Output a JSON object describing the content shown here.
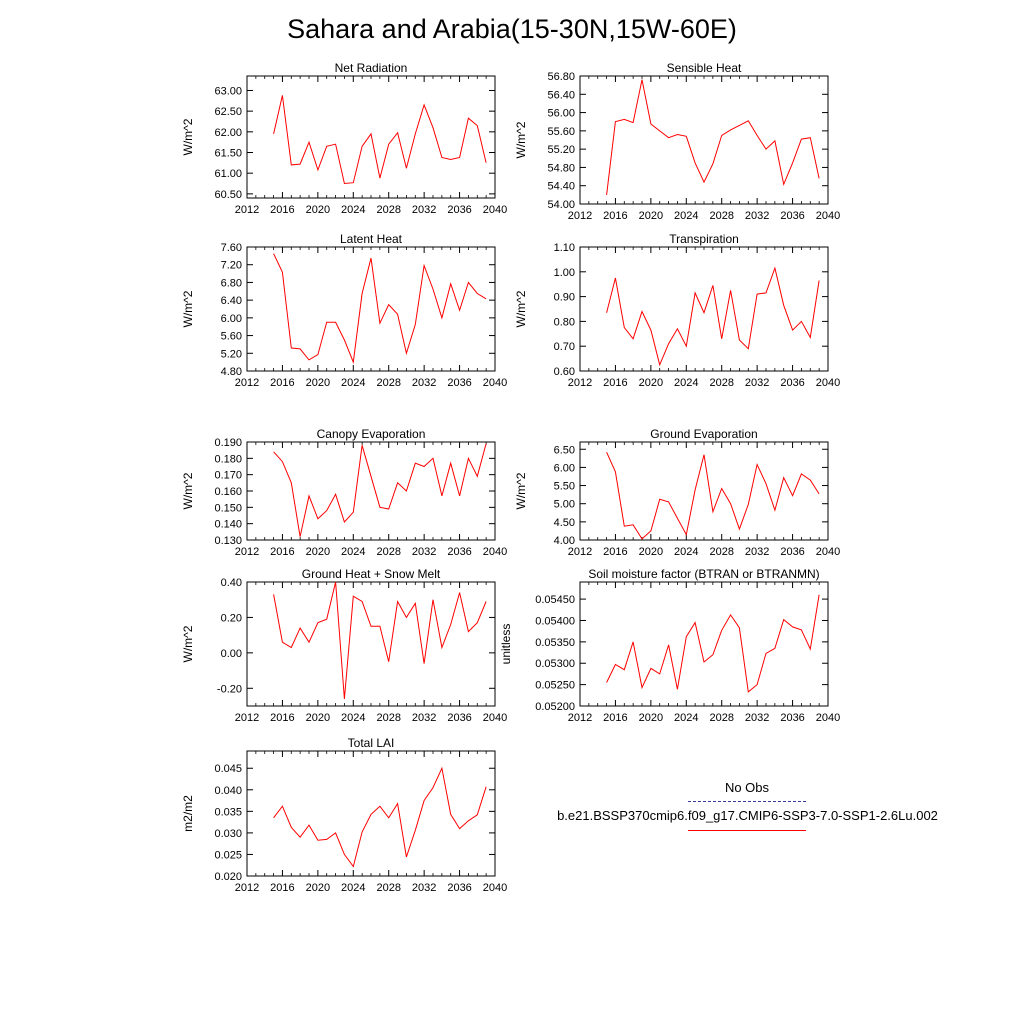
{
  "page_title": "Sahara and Arabia(15-30N,15W-60E)",
  "legend": {
    "obs_label": "No Obs",
    "series_label": "b.e21.BSSP370cmip6.f09_g17.CMIP6-SSP3-7.0-SSP1-2.6Lu.002",
    "obs_color": "#3a3a9a",
    "series_color": "#ff0000"
  },
  "chart_data": [
    {
      "type": "line",
      "title": "Net Radiation",
      "ylabel": "W/m^2",
      "xlim": [
        2012,
        2040
      ],
      "ylim": [
        60.4,
        63.35
      ],
      "xticks": [
        "2012",
        "2016",
        "2020",
        "2024",
        "2028",
        "2032",
        "2036",
        "2040"
      ],
      "yticks": [
        "60.50",
        "61.00",
        "61.50",
        "62.00",
        "62.50",
        "63.00"
      ],
      "x": [
        2015,
        2016,
        2017,
        2018,
        2019,
        2020,
        2021,
        2022,
        2023,
        2024,
        2025,
        2026,
        2027,
        2028,
        2029,
        2030,
        2031,
        2032,
        2033,
        2034,
        2035,
        2036,
        2037,
        2038,
        2039
      ],
      "values": [
        61.95,
        62.88,
        61.2,
        61.22,
        61.75,
        61.08,
        61.65,
        61.7,
        60.75,
        60.77,
        61.65,
        61.95,
        60.88,
        61.7,
        61.98,
        61.12,
        61.95,
        62.65,
        62.1,
        61.38,
        61.33,
        61.38,
        62.33,
        62.15,
        61.25
      ],
      "color": "#ff0000"
    },
    {
      "type": "line",
      "title": "Sensible Heat",
      "ylabel": "W/m^2",
      "xlim": [
        2012,
        2040
      ],
      "ylim": [
        54.0,
        56.8
      ],
      "xticks": [
        "2012",
        "2016",
        "2020",
        "2024",
        "2028",
        "2032",
        "2036",
        "2040"
      ],
      "yticks": [
        "54.00",
        "54.40",
        "54.80",
        "55.20",
        "55.60",
        "56.00",
        "56.40",
        "56.80"
      ],
      "x": [
        2015,
        2016,
        2017,
        2018,
        2019,
        2020,
        2021,
        2022,
        2023,
        2024,
        2025,
        2026,
        2027,
        2028,
        2029,
        2030,
        2031,
        2032,
        2033,
        2034,
        2035,
        2036,
        2037,
        2038,
        2039
      ],
      "values": [
        54.2,
        55.8,
        55.85,
        55.78,
        56.72,
        55.75,
        55.6,
        55.45,
        55.52,
        55.48,
        54.9,
        54.48,
        54.88,
        55.5,
        55.62,
        55.72,
        55.82,
        55.5,
        55.2,
        55.38,
        54.43,
        54.9,
        55.42,
        55.45,
        54.56
      ],
      "color": "#ff0000"
    },
    {
      "type": "line",
      "title": "Latent Heat",
      "ylabel": "W/m^2",
      "xlim": [
        2012,
        2040
      ],
      "ylim": [
        4.8,
        7.6
      ],
      "xticks": [
        "2012",
        "2016",
        "2020",
        "2024",
        "2028",
        "2032",
        "2036",
        "2040"
      ],
      "yticks": [
        "4.80",
        "5.20",
        "5.60",
        "6.00",
        "6.40",
        "6.80",
        "7.20",
        "7.60"
      ],
      "x": [
        2015,
        2016,
        2017,
        2018,
        2019,
        2020,
        2021,
        2022,
        2023,
        2024,
        2025,
        2026,
        2027,
        2028,
        2029,
        2030,
        2031,
        2032,
        2033,
        2034,
        2035,
        2036,
        2037,
        2038,
        2039
      ],
      "values": [
        7.45,
        7.03,
        5.32,
        5.3,
        5.05,
        5.17,
        5.9,
        5.9,
        5.5,
        5.0,
        6.55,
        7.35,
        5.88,
        6.3,
        6.08,
        5.2,
        5.85,
        7.18,
        6.65,
        6.0,
        6.77,
        6.17,
        6.8,
        6.55,
        6.43
      ],
      "color": "#ff0000"
    },
    {
      "type": "line",
      "title": "Transpiration",
      "ylabel": "W/m^2",
      "xlim": [
        2012,
        2040
      ],
      "ylim": [
        0.6,
        1.1
      ],
      "xticks": [
        "2012",
        "2016",
        "2020",
        "2024",
        "2028",
        "2032",
        "2036",
        "2040"
      ],
      "yticks": [
        "0.60",
        "0.70",
        "0.80",
        "0.90",
        "1.00",
        "1.10"
      ],
      "x": [
        2015,
        2016,
        2017,
        2018,
        2019,
        2020,
        2021,
        2022,
        2023,
        2024,
        2025,
        2026,
        2027,
        2028,
        2029,
        2030,
        2031,
        2032,
        2033,
        2034,
        2035,
        2036,
        2037,
        2038,
        2039
      ],
      "values": [
        0.835,
        0.975,
        0.775,
        0.73,
        0.84,
        0.765,
        0.625,
        0.71,
        0.77,
        0.7,
        0.915,
        0.835,
        0.945,
        0.73,
        0.925,
        0.725,
        0.69,
        0.91,
        0.915,
        1.015,
        0.865,
        0.765,
        0.8,
        0.735,
        0.965
      ],
      "color": "#ff0000"
    },
    {
      "type": "line",
      "title": "Canopy Evaporation",
      "ylabel": "W/m^2",
      "xlim": [
        2012,
        2040
      ],
      "ylim": [
        0.13,
        0.19
      ],
      "xticks": [
        "2012",
        "2016",
        "2020",
        "2024",
        "2028",
        "2032",
        "2036",
        "2040"
      ],
      "yticks": [
        "0.130",
        "0.140",
        "0.150",
        "0.160",
        "0.170",
        "0.180",
        "0.190"
      ],
      "x": [
        2015,
        2016,
        2017,
        2018,
        2019,
        2020,
        2021,
        2022,
        2023,
        2024,
        2025,
        2026,
        2027,
        2028,
        2029,
        2030,
        2031,
        2032,
        2033,
        2034,
        2035,
        2036,
        2037,
        2038,
        2039
      ],
      "values": [
        0.184,
        0.178,
        0.165,
        0.132,
        0.157,
        0.143,
        0.148,
        0.158,
        0.141,
        0.147,
        0.188,
        0.169,
        0.15,
        0.149,
        0.165,
        0.16,
        0.177,
        0.175,
        0.18,
        0.157,
        0.177,
        0.157,
        0.18,
        0.169,
        0.189
      ],
      "color": "#ff0000"
    },
    {
      "type": "line",
      "title": "Ground Evaporation",
      "ylabel": "W/m^2",
      "xlim": [
        2012,
        2040
      ],
      "ylim": [
        4.0,
        6.7
      ],
      "xticks": [
        "2012",
        "2016",
        "2020",
        "2024",
        "2028",
        "2032",
        "2036",
        "2040"
      ],
      "yticks": [
        "4.00",
        "4.50",
        "5.00",
        "5.50",
        "6.00",
        "6.50"
      ],
      "x": [
        2015,
        2016,
        2017,
        2018,
        2019,
        2020,
        2021,
        2022,
        2023,
        2024,
        2025,
        2026,
        2027,
        2028,
        2029,
        2030,
        2031,
        2032,
        2033,
        2034,
        2035,
        2036,
        2037,
        2038,
        2039
      ],
      "values": [
        6.42,
        5.88,
        4.38,
        4.42,
        4.03,
        4.25,
        5.12,
        5.05,
        4.6,
        4.15,
        5.38,
        6.35,
        4.78,
        5.42,
        5.0,
        4.3,
        4.98,
        6.08,
        5.55,
        4.82,
        5.72,
        5.22,
        5.82,
        5.65,
        5.27
      ],
      "color": "#ff0000"
    },
    {
      "type": "line",
      "title": "Ground Heat + Snow Melt",
      "ylabel": "W/m^2",
      "xlim": [
        2012,
        2040
      ],
      "ylim": [
        -0.3,
        0.4
      ],
      "xticks": [
        "2012",
        "2016",
        "2020",
        "2024",
        "2028",
        "2032",
        "2036",
        "2040"
      ],
      "yticks": [
        "-0.20",
        "0.00",
        "0.20",
        "0.40"
      ],
      "ytick_values": [
        -0.2,
        0.0,
        0.2,
        0.4
      ],
      "x": [
        2015,
        2016,
        2017,
        2018,
        2019,
        2020,
        2021,
        2022,
        2023,
        2024,
        2025,
        2026,
        2027,
        2028,
        2029,
        2030,
        2031,
        2032,
        2033,
        2034,
        2035,
        2036,
        2037,
        2038,
        2039
      ],
      "values": [
        0.33,
        0.06,
        0.03,
        0.14,
        0.06,
        0.17,
        0.19,
        0.4,
        -0.26,
        0.32,
        0.29,
        0.15,
        0.15,
        -0.05,
        0.29,
        0.2,
        0.28,
        -0.06,
        0.3,
        0.03,
        0.16,
        0.34,
        0.12,
        0.17,
        0.29
      ],
      "color": "#ff0000"
    },
    {
      "type": "line",
      "title": "Soil moisture factor (BTRAN or BTRANMN)",
      "ylabel": "unitless",
      "xlim": [
        2012,
        2040
      ],
      "ylim": [
        0.052,
        0.0549
      ],
      "xticks": [
        "2012",
        "2016",
        "2020",
        "2024",
        "2028",
        "2032",
        "2036",
        "2040"
      ],
      "yticks": [
        "0.05200",
        "0.05250",
        "0.05300",
        "0.05350",
        "0.05400",
        "0.05450"
      ],
      "ytick_values": [
        0.052,
        0.0525,
        0.053,
        0.0535,
        0.054,
        0.0545
      ],
      "x": [
        2015,
        2016,
        2017,
        2018,
        2019,
        2020,
        2021,
        2022,
        2023,
        2024,
        2025,
        2026,
        2027,
        2028,
        2029,
        2030,
        2031,
        2032,
        2033,
        2034,
        2035,
        2036,
        2037,
        2038,
        2039
      ],
      "values": [
        0.05255,
        0.05297,
        0.05285,
        0.0535,
        0.05243,
        0.05288,
        0.05275,
        0.05343,
        0.05239,
        0.05362,
        0.05395,
        0.05303,
        0.0532,
        0.05377,
        0.05413,
        0.05383,
        0.05233,
        0.0525,
        0.05323,
        0.05335,
        0.05402,
        0.05385,
        0.05378,
        0.05333,
        0.0546
      ],
      "color": "#ff0000"
    },
    {
      "type": "line",
      "title": "Total LAI",
      "ylabel": "m2/m2",
      "xlim": [
        2012,
        2040
      ],
      "ylim": [
        0.02,
        0.049
      ],
      "xticks": [
        "2012",
        "2016",
        "2020",
        "2024",
        "2028",
        "2032",
        "2036",
        "2040"
      ],
      "yticks": [
        "0.020",
        "0.025",
        "0.030",
        "0.035",
        "0.040",
        "0.045"
      ],
      "x": [
        2015,
        2016,
        2017,
        2018,
        2019,
        2020,
        2021,
        2022,
        2023,
        2024,
        2025,
        2026,
        2027,
        2028,
        2029,
        2030,
        2031,
        2032,
        2033,
        2034,
        2035,
        2036,
        2037,
        2038,
        2039
      ],
      "values": [
        0.0335,
        0.0362,
        0.0313,
        0.029,
        0.0318,
        0.0283,
        0.0285,
        0.03,
        0.025,
        0.0222,
        0.0302,
        0.0343,
        0.0362,
        0.0335,
        0.0368,
        0.0244,
        0.0306,
        0.0375,
        0.0405,
        0.045,
        0.0343,
        0.031,
        0.0328,
        0.0342,
        0.0407
      ],
      "color": "#ff0000"
    }
  ]
}
